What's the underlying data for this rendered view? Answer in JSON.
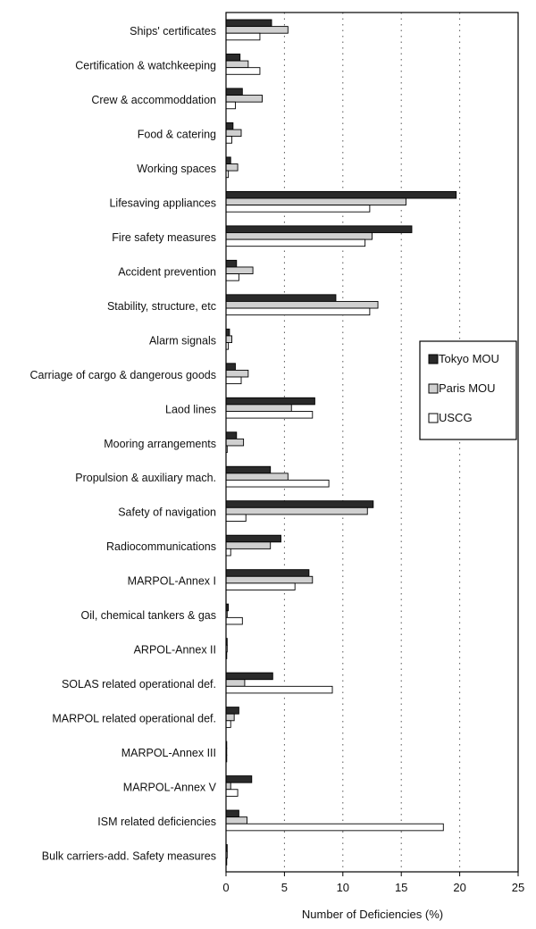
{
  "chart_data": {
    "type": "bar",
    "orientation": "horizontal",
    "title": "",
    "xlabel": "Number of Deficiencies (%)",
    "ylabel": "",
    "xlim": [
      0,
      25
    ],
    "xticks": [
      0,
      5,
      10,
      15,
      20,
      25
    ],
    "grid": "vertical dotted",
    "legend_position": "right",
    "categories": [
      "Ships' certificates",
      "Certification & watchkeeping",
      "Crew & accommoddation",
      "Food & catering",
      "Working spaces",
      "Lifesaving appliances",
      "Fire safety measures",
      "Accident prevention",
      "Stability, structure, etc",
      "Alarm signals",
      "Carriage of cargo & dangerous goods",
      "Laod lines",
      "Mooring arrangements",
      "Propulsion & auxiliary mach.",
      "Safety of navigation",
      "Radiocommunications",
      "MARPOL-Annex I",
      "Oil, chemical tankers & gas",
      "ARPOL-Annex II",
      "SOLAS related operational def.",
      "MARPOL related operational def.",
      "MARPOL-Annex III",
      "MARPOL-Annex V",
      "ISM related deficiencies",
      "Bulk carriers-add. Safety measures"
    ],
    "series": [
      {
        "name": "Tokyo MOU",
        "color": "#2a2a2a",
        "values": [
          3.9,
          1.2,
          1.4,
          0.6,
          0.4,
          19.7,
          15.9,
          0.9,
          9.4,
          0.3,
          0.8,
          7.6,
          0.9,
          3.8,
          12.6,
          4.7,
          7.1,
          0.2,
          0.1,
          4.0,
          1.1,
          0.05,
          2.2,
          1.1,
          0.1
        ]
      },
      {
        "name": "Paris MOU",
        "color": "#d0d0d0",
        "values": [
          5.3,
          1.9,
          3.1,
          1.3,
          1.0,
          15.4,
          12.5,
          2.3,
          13.0,
          0.5,
          1.9,
          5.6,
          1.5,
          5.3,
          12.1,
          3.8,
          7.4,
          0.1,
          0.1,
          1.6,
          0.7,
          0.05,
          0.4,
          1.8,
          0.1
        ]
      },
      {
        "name": "USCG",
        "color": "#ffffff",
        "values": [
          2.9,
          2.9,
          0.8,
          0.5,
          0.2,
          12.3,
          11.9,
          1.1,
          12.3,
          0.2,
          1.3,
          7.4,
          0.1,
          8.8,
          1.7,
          0.4,
          5.9,
          1.4,
          0.05,
          9.1,
          0.4,
          0.05,
          1.0,
          18.6,
          0.05
        ]
      }
    ]
  }
}
